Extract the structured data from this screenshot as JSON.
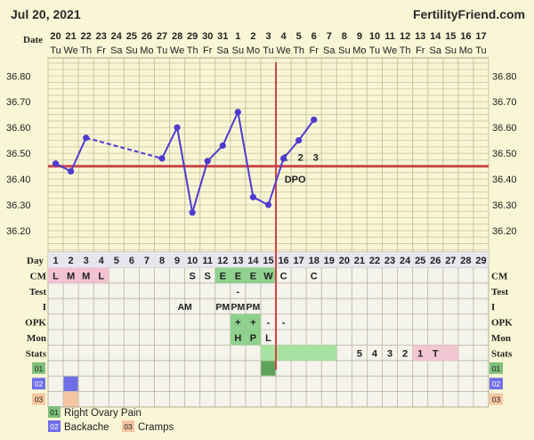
{
  "header": {
    "date_title": "Jul 20, 2021",
    "brand": "FertilityFriend.com",
    "date_label": "Date",
    "day_label": "Day",
    "rows_label_left": [
      "CM",
      "Test",
      "I",
      "OPK",
      "Mon",
      "Stats"
    ],
    "rows_label_right": [
      "CM",
      "Test",
      "I",
      "OPK",
      "Mon",
      "Stats"
    ]
  },
  "chart_data": {
    "type": "line",
    "dates": [
      "20",
      "21",
      "22",
      "23",
      "24",
      "25",
      "26",
      "27",
      "28",
      "29",
      "30",
      "31",
      "1",
      "2",
      "3",
      "4",
      "5",
      "6",
      "7",
      "8",
      "9",
      "10",
      "11",
      "12",
      "13",
      "14",
      "15",
      "16",
      "17"
    ],
    "weekdays": [
      "Tu",
      "We",
      "Th",
      "Fr",
      "Sa",
      "Su",
      "Mo",
      "Tu",
      "We",
      "Th",
      "Fr",
      "Sa",
      "Su",
      "Mo",
      "Tu",
      "We",
      "Th",
      "Fr",
      "Sa",
      "Su",
      "Mo",
      "Tu",
      "We",
      "Th",
      "Fr",
      "Sa",
      "Su",
      "Mo",
      "Tu"
    ],
    "cycle_days": [
      "1",
      "2",
      "3",
      "4",
      "5",
      "6",
      "7",
      "8",
      "9",
      "10",
      "11",
      "12",
      "13",
      "14",
      "15",
      "16",
      "17",
      "18",
      "19",
      "20",
      "21",
      "22",
      "23",
      "24",
      "25",
      "26",
      "27",
      "28",
      "29"
    ],
    "y_ticks": [
      "36.80",
      "36.70",
      "36.60",
      "36.50",
      "36.40",
      "36.30",
      "36.20"
    ],
    "ylim": [
      36.11,
      36.87
    ],
    "temperatures": [
      {
        "day": 1,
        "temp": 36.46
      },
      {
        "day": 2,
        "temp": 36.43
      },
      {
        "day": 3,
        "temp": 36.56
      },
      {
        "day": 8,
        "temp": 36.48
      },
      {
        "day": 9,
        "temp": 36.6
      },
      {
        "day": 10,
        "temp": 36.27
      },
      {
        "day": 11,
        "temp": 36.47
      },
      {
        "day": 12,
        "temp": 36.53
      },
      {
        "day": 13,
        "temp": 36.66
      },
      {
        "day": 14,
        "temp": 36.33
      },
      {
        "day": 15,
        "temp": 36.3
      },
      {
        "day": 16,
        "temp": 36.48
      },
      {
        "day": 17,
        "temp": 36.55
      },
      {
        "day": 18,
        "temp": 36.63
      }
    ],
    "dashed_segments": [
      [
        3,
        8
      ]
    ],
    "coverline": 36.45,
    "ovulation_day": 15,
    "dpo_numbers": [
      {
        "day": 16,
        "text": "1"
      },
      {
        "day": 17,
        "text": "2"
      },
      {
        "day": 18,
        "text": "3"
      }
    ],
    "dpo_label": "DPO",
    "colors": {
      "background": "#f9f6d6",
      "grid": "#c9c5a0",
      "temp_line": "#4f3bd0",
      "coverline": "#c84a4a",
      "ovulation": "#d24040",
      "period": "#f2c2d2",
      "fertile": "#8fd18f",
      "stats_green": "#a7e2a3",
      "stats_pink": "#f4c6d4"
    }
  },
  "cm_row": [
    {
      "day": 1,
      "text": "L",
      "color": "#f2c2d2"
    },
    {
      "day": 2,
      "text": "M",
      "color": "#f2c2d2"
    },
    {
      "day": 3,
      "text": "M",
      "color": "#f2c2d2"
    },
    {
      "day": 4,
      "text": "L",
      "color": "#f2c2d2"
    },
    {
      "day": 10,
      "text": "S",
      "color": ""
    },
    {
      "day": 11,
      "text": "S",
      "color": ""
    },
    {
      "day": 12,
      "text": "E",
      "color": "#8fd18f"
    },
    {
      "day": 13,
      "text": "E",
      "color": "#8fd18f"
    },
    {
      "day": 14,
      "text": "E",
      "color": "#8fd18f"
    },
    {
      "day": 15,
      "text": "W",
      "color": "#8fd18f"
    },
    {
      "day": 16,
      "text": "C",
      "color": ""
    },
    {
      "day": 18,
      "text": "C",
      "color": ""
    }
  ],
  "test_row": [
    {
      "day": 13,
      "text": "-"
    }
  ],
  "i_row": [
    {
      "day": 9,
      "text": "AM",
      "span": 2
    },
    {
      "day": 12,
      "text": "PM",
      "span": 1
    },
    {
      "day": 13,
      "text": "PM",
      "span": 1
    },
    {
      "day": 14,
      "text": "PM",
      "span": 1
    }
  ],
  "opk_row": [
    {
      "day": 13,
      "text": "+",
      "color": "#8fd18f"
    },
    {
      "day": 14,
      "text": "+",
      "color": "#8fd18f"
    },
    {
      "day": 15,
      "text": "-",
      "color": ""
    },
    {
      "day": 16,
      "text": "-",
      "color": ""
    }
  ],
  "mon_row": [
    {
      "day": 13,
      "text": "H",
      "color": "#8fd18f"
    },
    {
      "day": 14,
      "text": "P",
      "color": "#8fd18f"
    },
    {
      "day": 15,
      "text": "L",
      "color": ""
    }
  ],
  "stats_row": {
    "green_from": 15,
    "green_to": 19,
    "pink_from": 25,
    "pink_to": 27,
    "cells": [
      {
        "day": 21,
        "text": "5"
      },
      {
        "day": 22,
        "text": "4"
      },
      {
        "day": 23,
        "text": "3"
      },
      {
        "day": 24,
        "text": "2"
      },
      {
        "day": 25,
        "text": "1"
      },
      {
        "day": 26,
        "text": "T"
      }
    ]
  },
  "symptoms": [
    {
      "code": "01",
      "name": "Right Ovary Pain",
      "color": "#7fc07a",
      "days": [
        15
      ]
    },
    {
      "code": "02",
      "name": "Backache",
      "color": "#6f6ee8",
      "days": [
        2
      ]
    },
    {
      "code": "03",
      "name": "Cramps",
      "color": "#f5c6a0",
      "days": [
        2
      ]
    }
  ],
  "legend": [
    {
      "code": "01",
      "name": "Right Ovary Pain"
    },
    {
      "code": "02",
      "name": "Backache"
    },
    {
      "code": "03",
      "name": "Cramps"
    }
  ]
}
